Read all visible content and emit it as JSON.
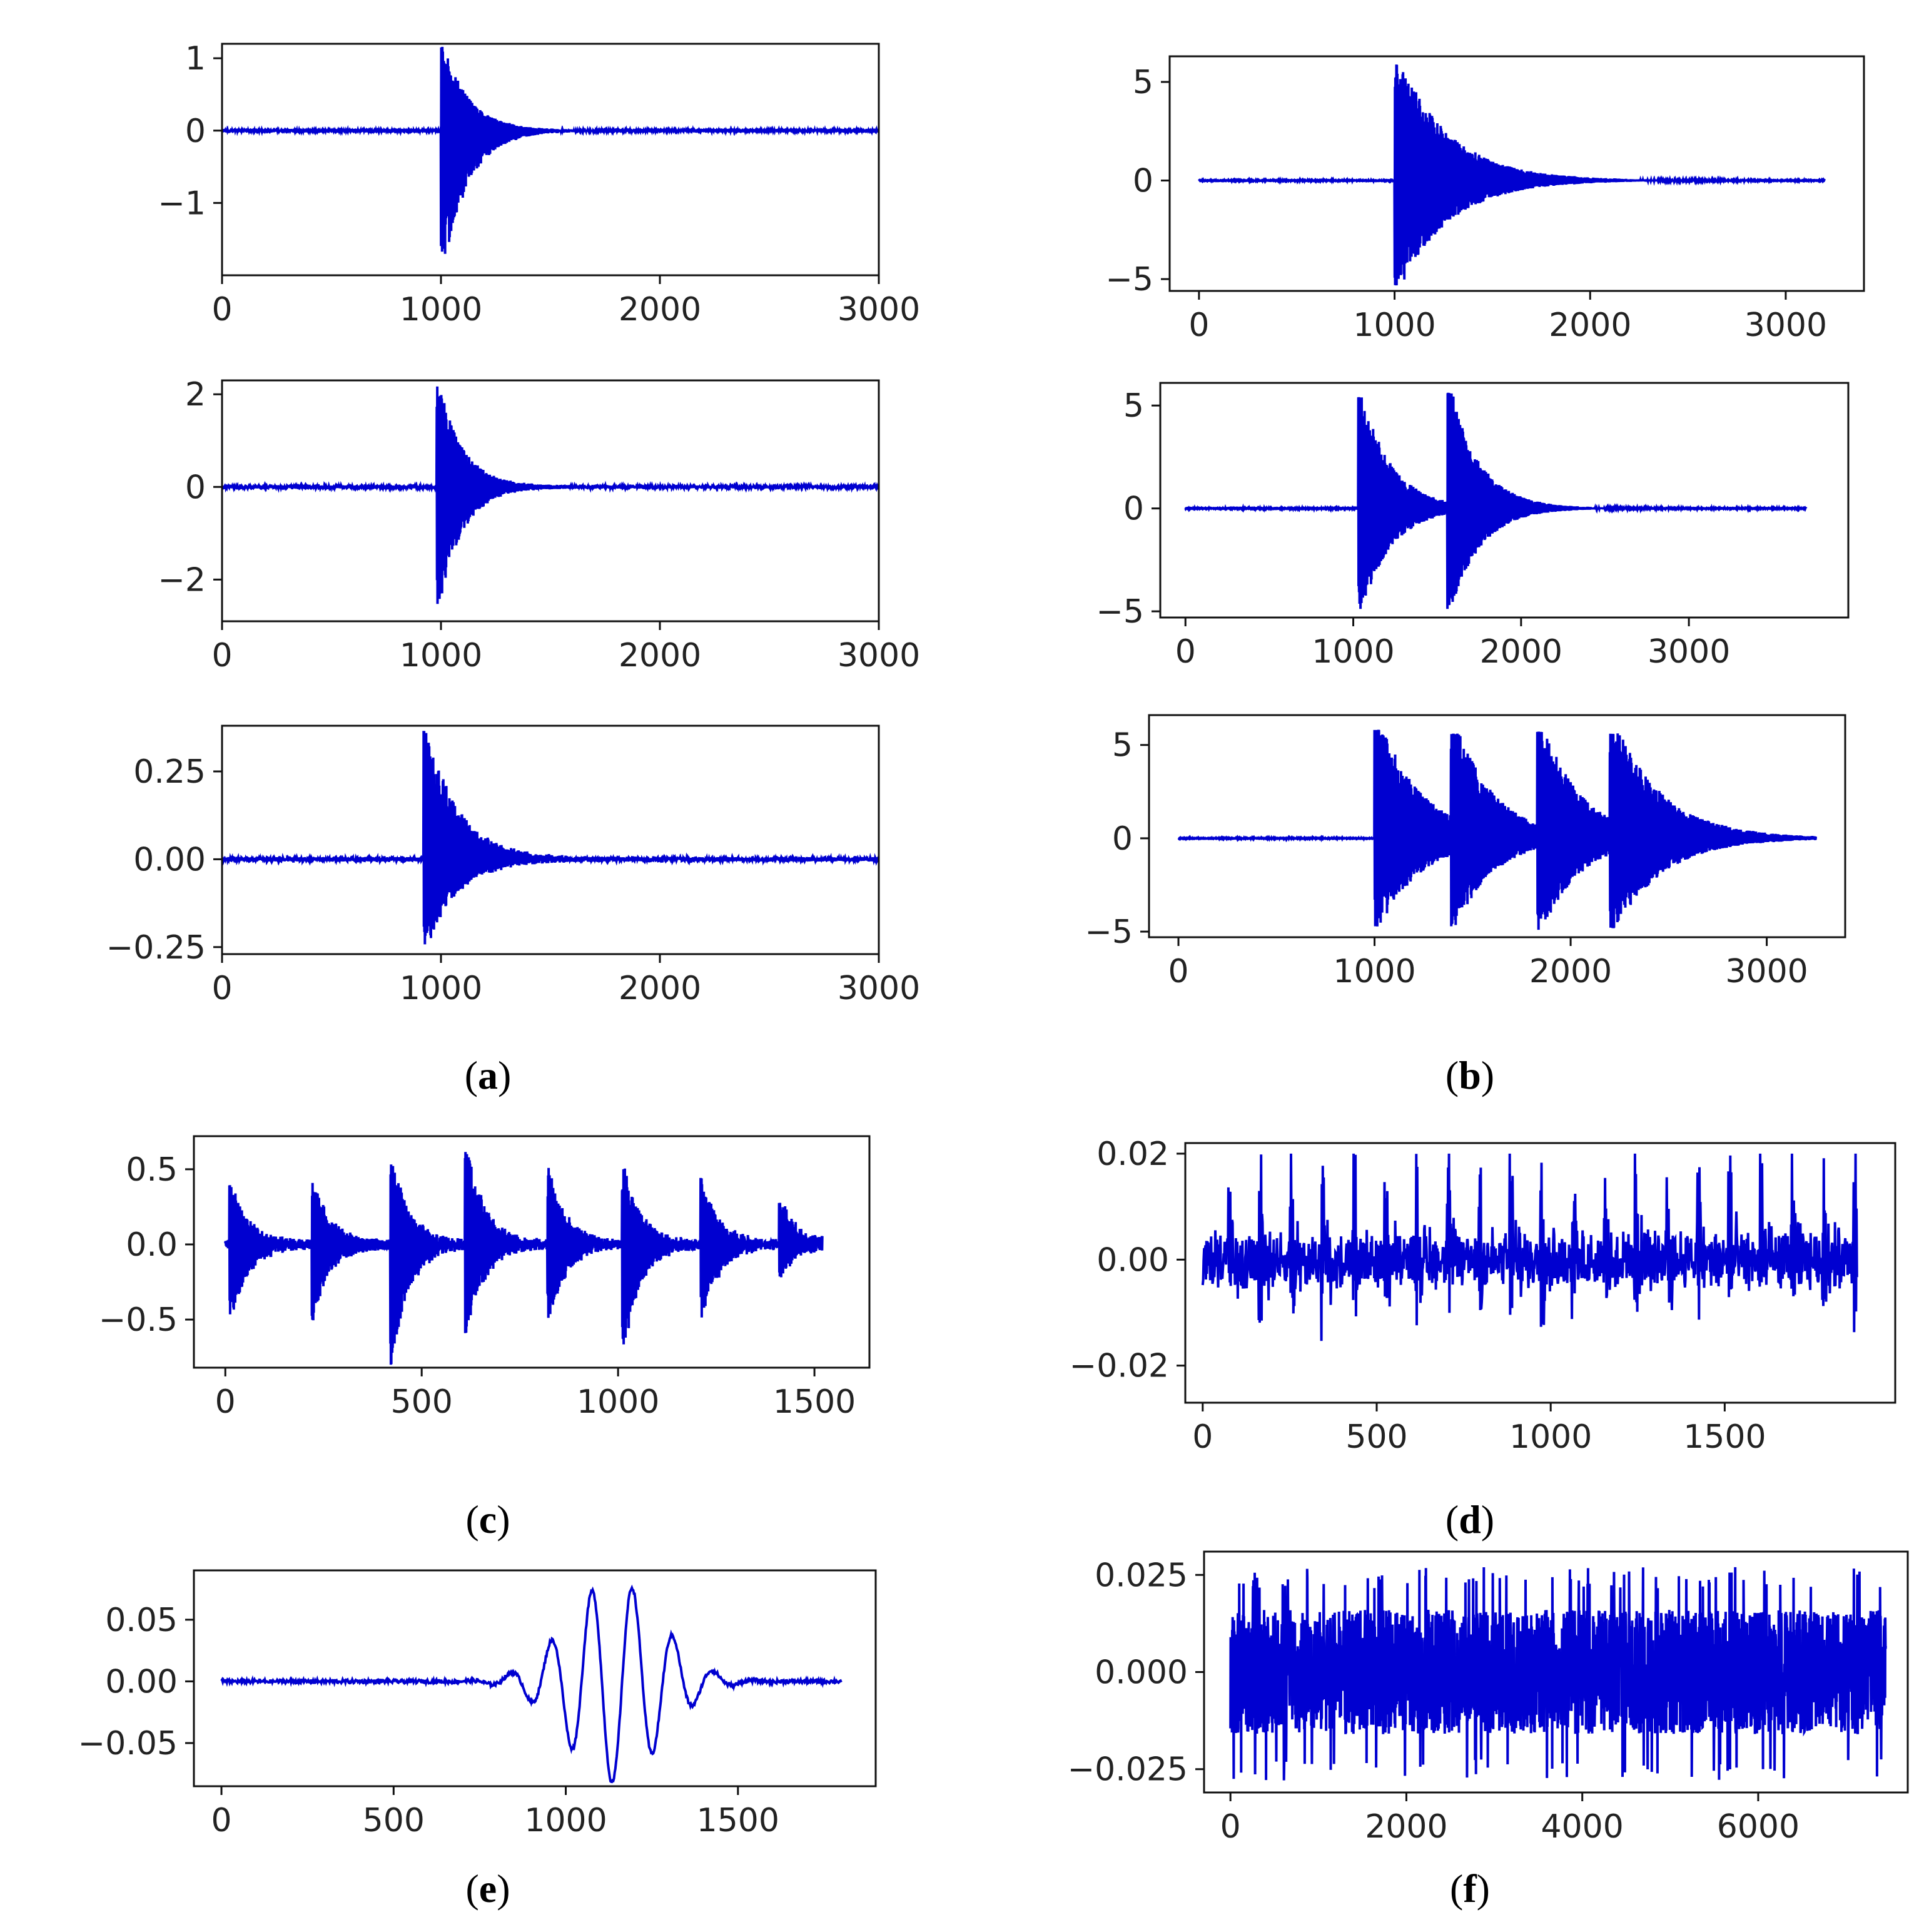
{
  "line_color": "#0000d0",
  "captions": [
    {
      "id": "a",
      "text": "a"
    },
    {
      "id": "b",
      "text": "b"
    },
    {
      "id": "c",
      "text": "c"
    },
    {
      "id": "d",
      "text": "d"
    },
    {
      "id": "e",
      "text": "e"
    },
    {
      "id": "f",
      "text": "f"
    }
  ],
  "chart_data": [
    {
      "panel": "a",
      "index": 1,
      "type": "line",
      "signal": "burst",
      "xlim": [
        0,
        3000
      ],
      "ylim": [
        -2.0,
        1.2
      ],
      "xticks": [
        0,
        1000,
        2000,
        3000
      ],
      "xtick_labels": [
        "0",
        "1000",
        "2000",
        "3000"
      ],
      "yticks": [
        1,
        0,
        -1
      ],
      "ytick_labels": [
        "1",
        "0",
        "−1"
      ],
      "bursts": [
        {
          "start": 1000,
          "amp": 1.15,
          "neg_amp": 1.85,
          "decay": 120
        }
      ],
      "noise": 0.01
    },
    {
      "panel": "a",
      "index": 2,
      "type": "line",
      "signal": "burst",
      "xlim": [
        0,
        3000
      ],
      "ylim": [
        -2.9,
        2.3
      ],
      "xticks": [
        0,
        1000,
        2000,
        3000
      ],
      "xtick_labels": [
        "0",
        "1000",
        "2000",
        "3000"
      ],
      "yticks": [
        2,
        0,
        -2
      ],
      "ytick_labels": [
        "2",
        "0",
        "−2"
      ],
      "bursts": [
        {
          "start": 980,
          "amp": 2.2,
          "neg_amp": 2.5,
          "decay": 110
        }
      ],
      "noise": 0.03
    },
    {
      "panel": "a",
      "index": 3,
      "type": "line",
      "signal": "burst",
      "xlim": [
        0,
        3000
      ],
      "ylim": [
        -0.27,
        0.38
      ],
      "xticks": [
        0,
        1000,
        2000,
        3000
      ],
      "xtick_labels": [
        "0",
        "1000",
        "2000",
        "3000"
      ],
      "yticks": [
        0.25,
        0.0,
        -0.25
      ],
      "ytick_labels": [
        "0.25",
        "0.00",
        "−0.25"
      ],
      "bursts": [
        {
          "start": 920,
          "amp": 0.36,
          "neg_amp": 0.24,
          "decay": 150
        }
      ],
      "noise": 0.006
    },
    {
      "panel": "b",
      "index": 1,
      "type": "line",
      "signal": "burst",
      "xlim": [
        -150,
        3400
      ],
      "ylim": [
        -5.6,
        6.3
      ],
      "xticks": [
        0,
        1000,
        2000,
        3000
      ],
      "xtick_labels": [
        "0",
        "1000",
        "2000",
        "3000"
      ],
      "yticks": [
        5,
        0,
        -5
      ],
      "ytick_labels": [
        "5",
        "0",
        "−5"
      ],
      "x_end": 3200,
      "bursts": [
        {
          "start": 1000,
          "amp": 6.0,
          "neg_amp": 5.3,
          "decay": 260,
          "sat": 5.9
        }
      ],
      "noise": 0.02
    },
    {
      "panel": "b",
      "index": 2,
      "type": "line",
      "signal": "burst",
      "xlim": [
        -150,
        3950
      ],
      "ylim": [
        -5.3,
        6.1
      ],
      "xticks": [
        0,
        1000,
        2000,
        3000
      ],
      "xtick_labels": [
        "0",
        "1000",
        "2000",
        "3000"
      ],
      "yticks": [
        5,
        0,
        -5
      ],
      "ytick_labels": [
        "5",
        "0",
        "−5"
      ],
      "x_end": 3700,
      "bursts": [
        {
          "start": 1030,
          "amp": 5.6,
          "neg_amp": 4.9,
          "decay": 180,
          "sat": 5.4
        },
        {
          "start": 1560,
          "amp": 5.8,
          "neg_amp": 4.9,
          "decay": 180,
          "sat": 5.6
        }
      ],
      "noise": 0.02
    },
    {
      "panel": "b",
      "index": 3,
      "type": "line",
      "signal": "burst",
      "xlim": [
        -150,
        3400
      ],
      "ylim": [
        -5.3,
        6.6
      ],
      "xticks": [
        0,
        1000,
        2000,
        3000
      ],
      "xtick_labels": [
        "0",
        "1000",
        "2000",
        "3000"
      ],
      "yticks": [
        5,
        0,
        -5
      ],
      "ytick_labels": [
        "5",
        "0",
        "−5"
      ],
      "x_end": 3250,
      "bursts": [
        {
          "start": 1000,
          "amp": 6.3,
          "neg_amp": 4.7,
          "decay": 220,
          "sat": 5.8
        },
        {
          "start": 1390,
          "amp": 6.2,
          "neg_amp": 4.7,
          "decay": 200,
          "sat": 5.6
        },
        {
          "start": 1830,
          "amp": 6.2,
          "neg_amp": 4.9,
          "decay": 200,
          "sat": 5.7
        },
        {
          "start": 2200,
          "amp": 6.1,
          "neg_amp": 4.8,
          "decay": 250,
          "sat": 5.6
        }
      ],
      "noise": 0.02
    },
    {
      "panel": "c",
      "index": 1,
      "type": "line",
      "signal": "burst",
      "xlim": [
        -80,
        1640
      ],
      "ylim": [
        -0.82,
        0.72
      ],
      "xticks": [
        0,
        500,
        1000,
        1500
      ],
      "xtick_labels": [
        "0",
        "500",
        "1000",
        "1500"
      ],
      "yticks": [
        0.5,
        0.0,
        -0.5
      ],
      "ytick_labels": [
        "0.5",
        "0.0",
        "−0.5"
      ],
      "x_end": 1520,
      "bursts": [
        {
          "start": 10,
          "amp": 0.4,
          "neg_amp": 0.5,
          "decay": 45
        },
        {
          "start": 220,
          "amp": 0.42,
          "neg_amp": 0.48,
          "decay": 45
        },
        {
          "start": 420,
          "amp": 0.58,
          "neg_amp": 0.78,
          "decay": 45
        },
        {
          "start": 610,
          "amp": 0.68,
          "neg_amp": 0.6,
          "decay": 45
        },
        {
          "start": 820,
          "amp": 0.48,
          "neg_amp": 0.48,
          "decay": 45
        },
        {
          "start": 1010,
          "amp": 0.5,
          "neg_amp": 0.68,
          "decay": 45
        },
        {
          "start": 1210,
          "amp": 0.42,
          "neg_amp": 0.5,
          "decay": 45
        },
        {
          "start": 1410,
          "amp": 0.28,
          "neg_amp": 0.22,
          "decay": 45
        }
      ],
      "noise": 0.03
    },
    {
      "panel": "d",
      "index": 1,
      "type": "line",
      "signal": "periodic_noise",
      "xlim": [
        -50,
        1990
      ],
      "ylim": [
        -0.027,
        0.022
      ],
      "xticks": [
        0,
        500,
        1000,
        1500
      ],
      "xtick_labels": [
        "0",
        "500",
        "1000",
        "1500"
      ],
      "yticks": [
        0.02,
        0.0,
        -0.02
      ],
      "ytick_labels": [
        "0.02",
        "0.00",
        "−0.02"
      ],
      "x_end": 1880,
      "period": 90,
      "amp": 0.016,
      "peak": 0.02,
      "trough": -0.026,
      "noise": 0.004
    },
    {
      "panel": "e",
      "index": 1,
      "type": "line",
      "signal": "wavelet",
      "xlim": [
        -80,
        1900
      ],
      "ylim": [
        -0.085,
        0.09
      ],
      "xticks": [
        0,
        500,
        1000,
        1500
      ],
      "xtick_labels": [
        "0",
        "500",
        "1000",
        "1500"
      ],
      "yticks": [
        0.05,
        0.0,
        -0.05
      ],
      "ytick_labels": [
        "0.05",
        "0.00",
        "−0.05"
      ],
      "x_end": 1800,
      "center": 1140,
      "amp": 0.082,
      "period": 118,
      "width": 135,
      "noise": 0.0015
    },
    {
      "panel": "f",
      "index": 1,
      "type": "line",
      "signal": "dense_noise",
      "xlim": [
        -300,
        7700
      ],
      "ylim": [
        -0.031,
        0.031
      ],
      "xticks": [
        0,
        2000,
        4000,
        6000
      ],
      "xtick_labels": [
        "0",
        "2000",
        "4000",
        "6000"
      ],
      "yticks": [
        0.025,
        0.0,
        -0.025
      ],
      "ytick_labels": [
        "0.025",
        "0.000",
        "−0.025"
      ],
      "x_end": 7450,
      "amp": 0.016,
      "peak": 0.027,
      "trough": -0.028
    }
  ]
}
